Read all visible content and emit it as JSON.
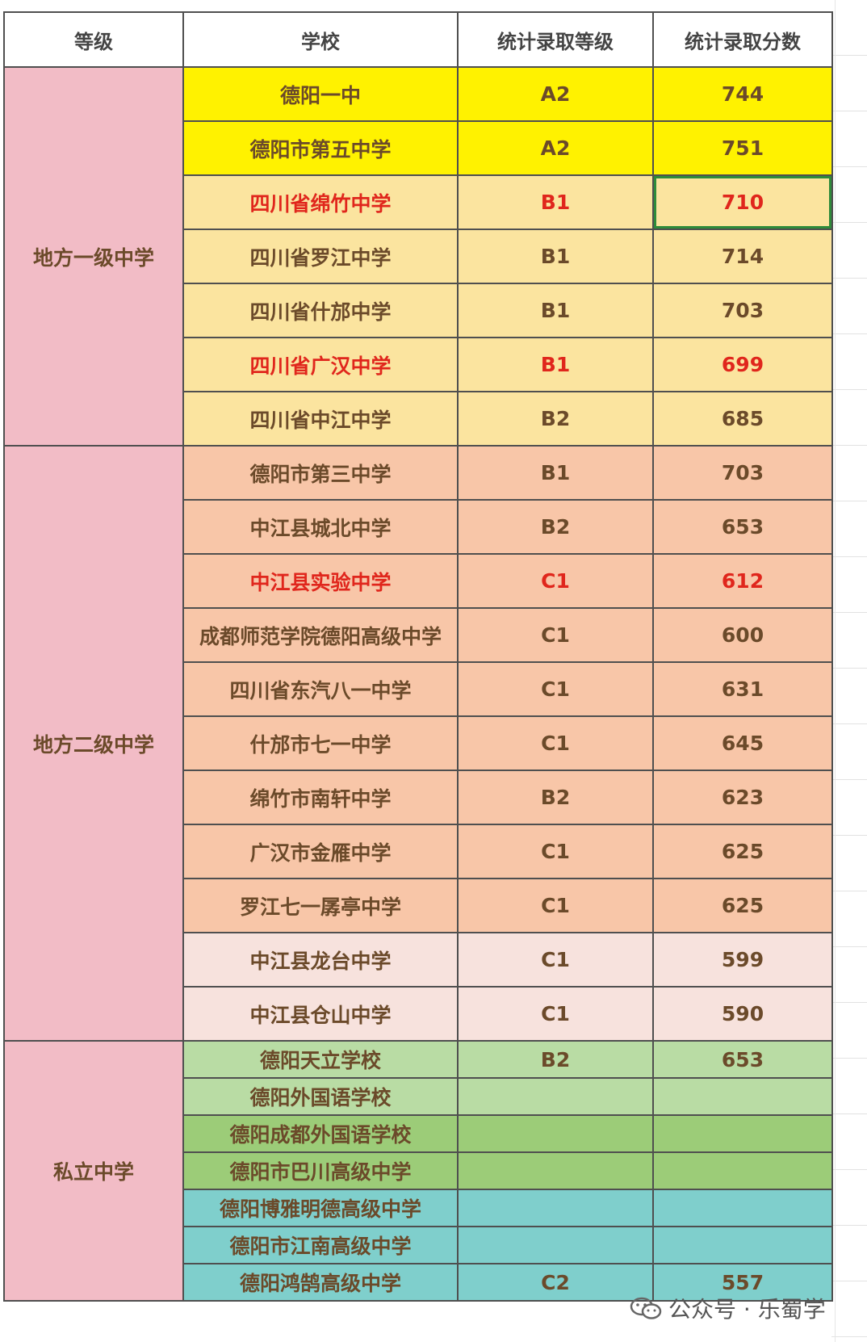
{
  "headers": [
    "等级",
    "学校",
    "统计录取等级",
    "统计录取分数"
  ],
  "groups": [
    {
      "name": "地方一级中学",
      "color": "#f2bcc6",
      "rows": 7
    },
    {
      "name": "地方二级中学",
      "color": "#f2bcc6",
      "rows": 11
    },
    {
      "name": "私立中学",
      "color": "#f2bcc6",
      "rows": 7
    }
  ],
  "rows": [
    {
      "school": "德阳一中",
      "grade": "A2",
      "score": "744",
      "bg": "#fff200",
      "red": false
    },
    {
      "school": "德阳市第五中学",
      "grade": "A2",
      "score": "751",
      "bg": "#fff200",
      "red": false
    },
    {
      "school": "四川省绵竹中学",
      "grade": "B1",
      "score": "710",
      "bg": "#fbe49f",
      "red": true
    },
    {
      "school": "四川省罗江中学",
      "grade": "B1",
      "score": "714",
      "bg": "#fbe49f",
      "red": false
    },
    {
      "school": "四川省什邡中学",
      "grade": "B1",
      "score": "703",
      "bg": "#fbe49f",
      "red": false
    },
    {
      "school": "四川省广汉中学",
      "grade": "B1",
      "score": "699",
      "bg": "#fbe49f",
      "red": true
    },
    {
      "school": "四川省中江中学",
      "grade": "B2",
      "score": "685",
      "bg": "#fbe49f",
      "red": false
    },
    {
      "school": "德阳市第三中学",
      "grade": "B1",
      "score": "703",
      "bg": "#f8c6a8",
      "red": false
    },
    {
      "school": "中江县城北中学",
      "grade": "B2",
      "score": "653",
      "bg": "#f8c6a8",
      "red": false
    },
    {
      "school": "中江县实验中学",
      "grade": "C1",
      "score": "612",
      "bg": "#f8c6a8",
      "red": true
    },
    {
      "school": "成都师范学院德阳高级中学",
      "grade": "C1",
      "score": "600",
      "bg": "#f8c6a8",
      "red": false
    },
    {
      "school": "四川省东汽八一中学",
      "grade": "C1",
      "score": "631",
      "bg": "#f8c6a8",
      "red": false
    },
    {
      "school": "什邡市七一中学",
      "grade": "C1",
      "score": "645",
      "bg": "#f8c6a8",
      "red": false
    },
    {
      "school": "绵竹市南轩中学",
      "grade": "B2",
      "score": "623",
      "bg": "#f8c6a8",
      "red": false
    },
    {
      "school": "广汉市金雁中学",
      "grade": "C1",
      "score": "625",
      "bg": "#f8c6a8",
      "red": false
    },
    {
      "school": "罗江七一孱亭中学",
      "grade": "C1",
      "score": "625",
      "bg": "#f8c6a8",
      "red": false
    },
    {
      "school": "中江县龙台中学",
      "grade": "C1",
      "score": "599",
      "bg": "#f7e2dd",
      "red": false
    },
    {
      "school": "中江县仓山中学",
      "grade": "C1",
      "score": "590",
      "bg": "#f7e2dd",
      "red": false
    },
    {
      "school": "德阳天立学校",
      "grade": "B2",
      "score": "653",
      "bg": "#b9dca4",
      "red": false
    },
    {
      "school": "德阳外国语学校",
      "grade": "",
      "score": "",
      "bg": "#b9dca4",
      "red": false
    },
    {
      "school": "德阳成都外国语学校",
      "grade": "",
      "score": "",
      "bg": "#9ccc78",
      "red": false
    },
    {
      "school": "德阳市巴川高级中学",
      "grade": "",
      "score": "",
      "bg": "#9ccc78",
      "red": false
    },
    {
      "school": "德阳博雅明德高级中学",
      "grade": "",
      "score": "",
      "bg": "#7fcfcc",
      "red": false
    },
    {
      "school": "德阳市江南高级中学",
      "grade": "",
      "score": "",
      "bg": "#7fcfcc",
      "red": false
    },
    {
      "school": "德阳鸿鹄高级中学",
      "grade": "C2",
      "score": "557",
      "bg": "#7fcfcc",
      "red": false
    }
  ],
  "selected_cell": "710",
  "watermark": {
    "text": "公众号 · 乐蜀学",
    "icon": "wechat-icon"
  }
}
